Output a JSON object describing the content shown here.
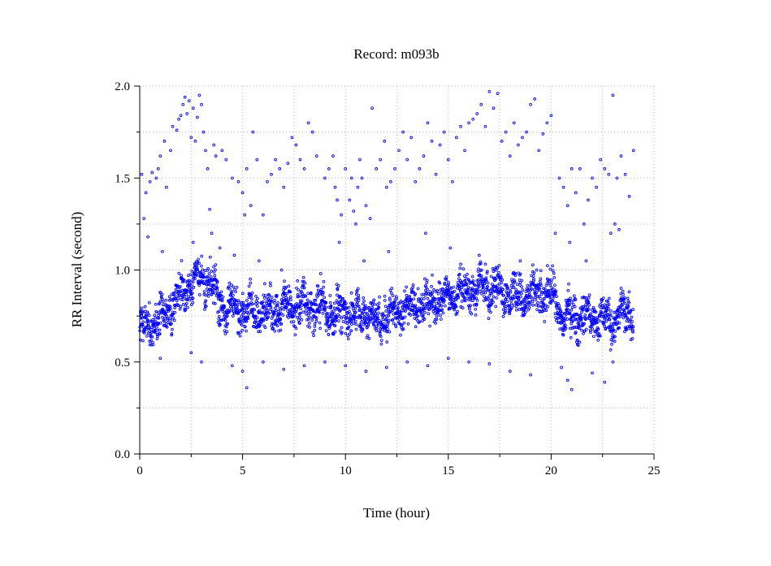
{
  "chart_data": {
    "type": "scatter",
    "title": "Record:  m093b",
    "xlabel": "Time (hour)",
    "ylabel": "RR Interval (second)",
    "xlim": [
      0,
      25
    ],
    "ylim": [
      0.0,
      2.0
    ],
    "x_ticks": [
      0,
      5,
      10,
      15,
      20,
      25
    ],
    "x_tick_labels": [
      "0",
      "5",
      "10",
      "15",
      "20",
      "25"
    ],
    "x_minor_ticks": [
      2.5,
      7.5,
      12.5,
      17.5,
      22.5
    ],
    "y_ticks": [
      0.0,
      0.5,
      1.0,
      1.5,
      2.0
    ],
    "y_tick_labels": [
      "0.0",
      "0.5",
      "1.0",
      "1.5",
      "2.0"
    ],
    "y_minor_ticks": [
      0.25,
      0.75,
      1.25,
      1.75
    ],
    "grid": true,
    "marker": "open-circle",
    "color": "#0000ff",
    "baseline_trend": {
      "x": [
        0,
        0.5,
        1,
        1.5,
        2,
        2.5,
        3,
        3.5,
        3.8,
        4,
        5,
        6,
        7,
        8,
        8.5,
        9,
        10,
        11,
        11.5,
        12,
        12.5,
        13,
        14,
        15,
        15.5,
        16,
        17,
        18,
        19,
        19.5,
        20,
        20.3,
        20.5,
        21,
        22,
        23,
        23.5,
        24
      ],
      "y": [
        0.68,
        0.7,
        0.74,
        0.8,
        0.86,
        0.93,
        0.95,
        0.93,
        0.85,
        0.8,
        0.78,
        0.77,
        0.79,
        0.82,
        0.8,
        0.78,
        0.76,
        0.76,
        0.73,
        0.74,
        0.78,
        0.8,
        0.82,
        0.86,
        0.87,
        0.88,
        0.92,
        0.87,
        0.85,
        0.87,
        0.88,
        0.8,
        0.74,
        0.75,
        0.74,
        0.73,
        0.76,
        0.77
      ]
    },
    "outliers": {
      "x": [
        0.1,
        0.2,
        0.3,
        0.5,
        0.6,
        0.8,
        0.9,
        1.0,
        1.2,
        1.3,
        1.5,
        1.6,
        1.8,
        1.9,
        2.0,
        2.1,
        2.2,
        2.3,
        2.4,
        2.5,
        2.6,
        2.7,
        2.8,
        2.9,
        3.0,
        3.1,
        3.2,
        3.3,
        3.4,
        3.5,
        3.6,
        3.7,
        4.0,
        4.2,
        4.5,
        4.8,
        5.0,
        5.2,
        5.4,
        5.5,
        5.7,
        6.0,
        6.2,
        6.4,
        6.6,
        6.8,
        7.0,
        7.2,
        7.4,
        7.6,
        7.8,
        8.0,
        8.2,
        8.4,
        8.6,
        9.0,
        9.2,
        9.4,
        9.5,
        9.6,
        9.8,
        10.0,
        10.2,
        10.3,
        10.4,
        10.5,
        10.6,
        10.7,
        10.8,
        11.0,
        11.2,
        11.3,
        11.5,
        11.7,
        11.9,
        12.0,
        12.2,
        12.4,
        12.6,
        12.8,
        13.0,
        13.2,
        13.4,
        13.6,
        13.8,
        14.0,
        14.2,
        14.4,
        14.6,
        14.8,
        15.0,
        15.2,
        15.4,
        15.6,
        15.8,
        16.0,
        16.2,
        16.4,
        16.6,
        16.8,
        17.0,
        17.2,
        17.4,
        17.6,
        17.8,
        18.0,
        18.2,
        18.4,
        18.6,
        18.8,
        19.0,
        19.2,
        19.4,
        19.6,
        19.8,
        20.0,
        20.2,
        20.4,
        20.6,
        20.8,
        21.0,
        21.2,
        21.4,
        21.6,
        21.8,
        22.0,
        22.2,
        22.4,
        22.6,
        22.8,
        23.0,
        23.2,
        23.4,
        23.6,
        23.8,
        24.0,
        0.4,
        1.1,
        2.6,
        3.9,
        4.6,
        5.1,
        5.8,
        6.9,
        8.8,
        9.7,
        10.9,
        12.1,
        13.9,
        15.1,
        16.5,
        18.5,
        19.3,
        20.9,
        21.7,
        22.9,
        23.1,
        23.3
      ],
      "y": [
        1.52,
        1.28,
        1.42,
        1.48,
        1.53,
        1.5,
        1.55,
        1.62,
        1.7,
        1.45,
        1.65,
        1.78,
        1.76,
        1.82,
        1.84,
        1.9,
        1.94,
        1.85,
        1.92,
        1.72,
        1.88,
        1.7,
        1.83,
        1.95,
        1.9,
        1.75,
        1.65,
        1.55,
        1.33,
        1.2,
        1.68,
        1.62,
        1.65,
        1.6,
        1.5,
        1.48,
        1.42,
        1.55,
        1.35,
        1.75,
        1.6,
        1.3,
        1.48,
        1.52,
        1.6,
        1.55,
        1.45,
        1.58,
        1.72,
        1.68,
        1.6,
        1.55,
        1.8,
        1.75,
        1.62,
        1.5,
        1.55,
        1.62,
        1.45,
        1.38,
        1.3,
        1.55,
        1.38,
        1.5,
        1.32,
        1.25,
        1.45,
        1.6,
        1.5,
        1.35,
        1.28,
        1.88,
        1.55,
        1.6,
        1.7,
        1.45,
        1.48,
        1.55,
        1.65,
        1.75,
        1.6,
        1.72,
        1.48,
        1.55,
        1.62,
        1.8,
        1.7,
        1.52,
        1.68,
        1.75,
        1.6,
        1.48,
        1.72,
        1.78,
        1.65,
        1.8,
        1.82,
        1.85,
        1.9,
        1.78,
        1.97,
        1.88,
        1.96,
        1.7,
        1.75,
        1.62,
        1.8,
        1.68,
        1.72,
        1.75,
        1.9,
        1.93,
        1.65,
        1.74,
        1.8,
        1.84,
        1.2,
        1.5,
        1.45,
        1.35,
        1.55,
        1.42,
        1.55,
        1.25,
        1.38,
        1.5,
        1.45,
        1.6,
        1.55,
        1.52,
        1.95,
        1.5,
        1.62,
        1.52,
        1.4,
        1.65,
        1.18,
        1.1,
        1.15,
        1.12,
        1.08,
        1.3,
        1.05,
        1.0,
        0.98,
        1.15,
        1.05,
        1.1,
        1.2,
        1.12,
        1.08,
        1.05,
        1.0,
        1.15,
        1.05,
        1.2,
        1.25,
        1.22
      ]
    },
    "low_outliers": {
      "x": [
        1.0,
        2.5,
        3.0,
        4.5,
        5.0,
        6.0,
        7.0,
        8.0,
        9.0,
        10.0,
        11.0,
        12.0,
        13.0,
        14.0,
        15.0,
        16.0,
        17.0,
        18.0,
        19.0,
        20.5,
        21.0,
        22.0,
        23.0,
        5.2,
        20.8,
        22.6
      ],
      "y": [
        0.52,
        0.55,
        0.5,
        0.48,
        0.45,
        0.5,
        0.46,
        0.48,
        0.5,
        0.48,
        0.45,
        0.47,
        0.5,
        0.48,
        0.52,
        0.5,
        0.49,
        0.45,
        0.43,
        0.47,
        0.35,
        0.44,
        0.5,
        0.36,
        0.4,
        0.39
      ]
    }
  }
}
